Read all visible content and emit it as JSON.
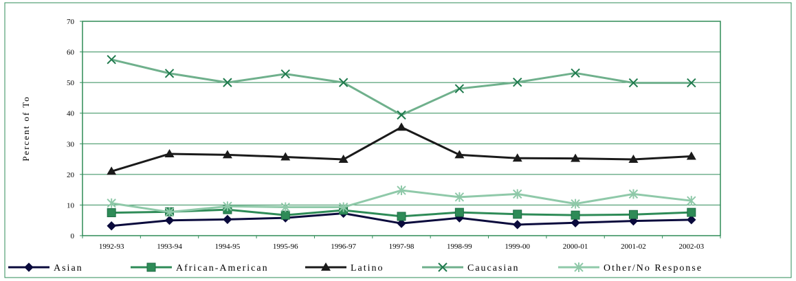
{
  "chart_data": {
    "type": "line",
    "title": "",
    "xlabel": "",
    "ylabel": "Percent of To",
    "ylim": [
      0,
      70
    ],
    "yticks": [
      0,
      10,
      20,
      30,
      40,
      50,
      60,
      70
    ],
    "grid": true,
    "legend_position": "bottom",
    "categories": [
      "1992-93",
      "1993-94",
      "1994-95",
      "1995-96",
      "1996-97",
      "1997-98",
      "1998-99",
      "1999-00",
      "2000-01",
      "2001-02",
      "2002-03"
    ],
    "series": [
      {
        "name": "Asian",
        "values": [
          3.2,
          5.0,
          5.3,
          5.8,
          7.3,
          4.0,
          5.8,
          3.6,
          4.2,
          4.8,
          5.2
        ],
        "color": "#0a0a3c",
        "marker": "diamond"
      },
      {
        "name": "African-American",
        "values": [
          7.5,
          7.8,
          8.5,
          6.7,
          8.3,
          6.3,
          7.6,
          7.0,
          6.7,
          6.9,
          7.6
        ],
        "color": "#2e8b57",
        "marker": "square"
      },
      {
        "name": "Latino",
        "values": [
          21.0,
          26.7,
          26.4,
          25.7,
          24.9,
          35.4,
          26.4,
          25.3,
          25.2,
          24.9,
          25.9
        ],
        "color": "#1a1a1a",
        "marker": "triangle"
      },
      {
        "name": "Caucasian",
        "values": [
          57.5,
          53.0,
          50.0,
          52.8,
          50.0,
          39.4,
          48.0,
          50.1,
          53.1,
          49.9,
          49.9
        ],
        "color": "#6fb08c",
        "marker": "x",
        "marker_color": "#1f7a4d"
      },
      {
        "name": "Other/No Response",
        "values": [
          10.6,
          7.7,
          9.6,
          9.3,
          9.3,
          14.8,
          12.6,
          13.6,
          10.4,
          13.6,
          11.4
        ],
        "color": "#8fc9a9",
        "marker": "star"
      }
    ]
  }
}
